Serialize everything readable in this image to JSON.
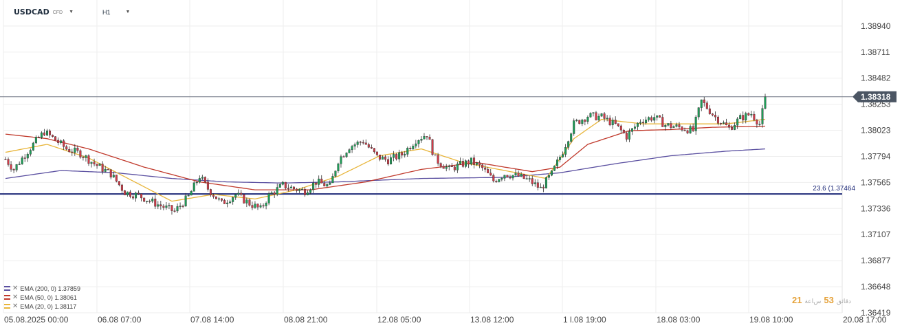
{
  "header": {
    "symbol": "USDCAD",
    "instrument_type": "CFD",
    "timeframe": "H1"
  },
  "legend": [
    {
      "label": "EMA (200, 0) 1.37859",
      "color": "#5a4fa0"
    },
    {
      "label": "EMA (50, 0) 1.38061",
      "color": "#c0392b"
    },
    {
      "label": "EMA (20, 0) 1.38117",
      "color": "#e8b53a"
    }
  ],
  "clock": {
    "hours": "21",
    "hours_label": "ﺱﺎﻋﺔ",
    "minutes": "53",
    "minutes_label": "ﺩﻗﺎﺋﻖ"
  },
  "chart_data": {
    "type": "candlestick",
    "title": "",
    "x_ticks": [
      "05.08.2025 00:00",
      "06.08 07:00",
      "07.08 14:00",
      "08.08 21:00",
      "12.08 05:00",
      "13.08 12:00",
      "1 l.08 19:00",
      "18.08 03:00",
      "19.08 10:00",
      "20.08 17:00"
    ],
    "y_ticks": [
      "1.38940",
      "1.38711",
      "1.38482",
      "1.38318",
      "1.38253",
      "1.38023",
      "1.37794",
      "1.37565",
      "1.37336",
      "1.37107",
      "1.36877",
      "1.36648",
      "1.36419"
    ],
    "ylim": [
      1.36419,
      1.39169
    ],
    "current_price": {
      "value": 1.38318,
      "label": "1.38318",
      "color": "#4b5563"
    },
    "fib_level": {
      "value": 1.37464,
      "label": "23.6 (1.37464",
      "color": "#1e2a78"
    },
    "up_color": "#1e9e58",
    "down_color": "#d03b48",
    "grid": true,
    "candle_anchors": [
      [
        0,
        1.3777
      ],
      [
        3,
        1.3768
      ],
      [
        7,
        1.3781
      ],
      [
        11,
        1.3793
      ],
      [
        14,
        1.3801
      ],
      [
        18,
        1.3794
      ],
      [
        22,
        1.3786
      ],
      [
        27,
        1.3782
      ],
      [
        32,
        1.3773
      ],
      [
        38,
        1.3764
      ],
      [
        43,
        1.3748
      ],
      [
        48,
        1.3745
      ],
      [
        55,
        1.3737
      ],
      [
        61,
        1.3731
      ],
      [
        66,
        1.3744
      ],
      [
        70,
        1.3762
      ],
      [
        73,
        1.3751
      ],
      [
        78,
        1.3738
      ],
      [
        83,
        1.3746
      ],
      [
        88,
        1.3738
      ],
      [
        92,
        1.3733
      ],
      [
        95,
        1.3745
      ],
      [
        100,
        1.3754
      ],
      [
        104,
        1.3751
      ],
      [
        108,
        1.3749
      ],
      [
        112,
        1.3757
      ],
      [
        117,
        1.3753
      ],
      [
        120,
        1.3776
      ],
      [
        124,
        1.3788
      ],
      [
        129,
        1.3793
      ],
      [
        134,
        1.3779
      ],
      [
        138,
        1.3776
      ],
      [
        143,
        1.3781
      ],
      [
        148,
        1.3794
      ],
      [
        152,
        1.3799
      ],
      [
        155,
        1.3777
      ],
      [
        160,
        1.3768
      ],
      [
        164,
        1.3772
      ],
      [
        168,
        1.3775
      ],
      [
        172,
        1.3769
      ],
      [
        176,
        1.3758
      ],
      [
        180,
        1.3764
      ],
      [
        185,
        1.3762
      ],
      [
        189,
        1.3758
      ],
      [
        193,
        1.3751
      ],
      [
        197,
        1.3764
      ],
      [
        201,
        1.3784
      ],
      [
        205,
        1.3808
      ],
      [
        210,
        1.3815
      ],
      [
        215,
        1.3814
      ],
      [
        220,
        1.3807
      ],
      [
        224,
        1.3797
      ],
      [
        229,
        1.3811
      ],
      [
        234,
        1.3814
      ],
      [
        238,
        1.3807
      ],
      [
        243,
        1.3805
      ],
      [
        248,
        1.3802
      ],
      [
        251,
        1.3828
      ],
      [
        256,
        1.3814
      ],
      [
        261,
        1.3804
      ],
      [
        265,
        1.3813
      ],
      [
        269,
        1.3817
      ],
      [
        272,
        1.3808
      ],
      [
        274,
        1.3829
      ]
    ],
    "series": [
      {
        "name": "EMA 200",
        "color": "#5a4fa0",
        "points": [
          [
            0,
            1.376
          ],
          [
            20,
            1.3767
          ],
          [
            40,
            1.3765
          ],
          [
            60,
            1.376
          ],
          [
            80,
            1.3757
          ],
          [
            100,
            1.3756
          ],
          [
            120,
            1.3757
          ],
          [
            150,
            1.376
          ],
          [
            180,
            1.3761
          ],
          [
            200,
            1.3765
          ],
          [
            220,
            1.3773
          ],
          [
            240,
            1.378
          ],
          [
            260,
            1.3784
          ],
          [
            274,
            1.3786
          ]
        ]
      },
      {
        "name": "EMA 50",
        "color": "#c0392b",
        "points": [
          [
            0,
            1.3799
          ],
          [
            15,
            1.3795
          ],
          [
            30,
            1.3786
          ],
          [
            50,
            1.377
          ],
          [
            70,
            1.3757
          ],
          [
            90,
            1.375
          ],
          [
            110,
            1.375
          ],
          [
            130,
            1.3757
          ],
          [
            150,
            1.3768
          ],
          [
            170,
            1.3774
          ],
          [
            190,
            1.3766
          ],
          [
            200,
            1.377
          ],
          [
            210,
            1.379
          ],
          [
            225,
            1.3802
          ],
          [
            240,
            1.3803
          ],
          [
            255,
            1.3805
          ],
          [
            274,
            1.3806
          ]
        ]
      },
      {
        "name": "EMA 20",
        "color": "#e8b53a",
        "points": [
          [
            0,
            1.3783
          ],
          [
            15,
            1.379
          ],
          [
            30,
            1.3778
          ],
          [
            45,
            1.3759
          ],
          [
            60,
            1.374
          ],
          [
            75,
            1.3746
          ],
          [
            90,
            1.3742
          ],
          [
            105,
            1.375
          ],
          [
            120,
            1.3762
          ],
          [
            135,
            1.378
          ],
          [
            150,
            1.3786
          ],
          [
            165,
            1.3774
          ],
          [
            180,
            1.3767
          ],
          [
            195,
            1.376
          ],
          [
            205,
            1.3795
          ],
          [
            215,
            1.3812
          ],
          [
            230,
            1.3808
          ],
          [
            245,
            1.3808
          ],
          [
            260,
            1.3808
          ],
          [
            274,
            1.3812
          ]
        ]
      }
    ]
  }
}
